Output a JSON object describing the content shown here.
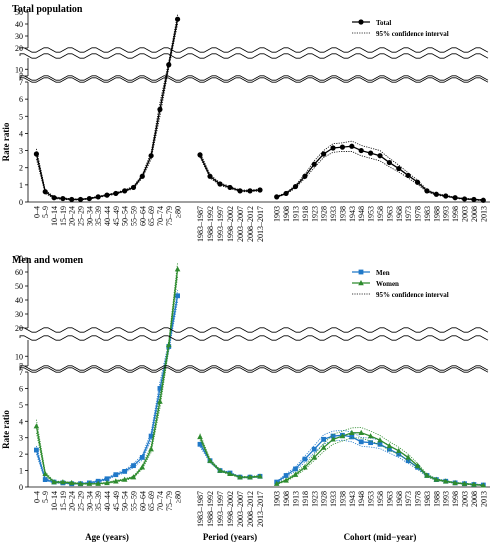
{
  "chart_data": [
    {
      "type": "line",
      "title": "Total population",
      "ylabel": "Rate ratio",
      "ci_label": "95% confidence interval",
      "ci_style": "dotted",
      "y_segments": [
        {
          "ylim": [
            0,
            7
          ],
          "yticks": [
            0,
            1,
            2,
            3,
            4,
            5,
            6,
            7
          ]
        },
        {
          "ylim": [
            7,
            15
          ],
          "yticks": [
            7,
            10
          ]
        },
        {
          "ylim": [
            20,
            50
          ],
          "yticks": [
            20,
            30,
            40,
            50
          ]
        }
      ],
      "panels": [
        {
          "categories": [
            "0–4",
            "5–9",
            "10–14",
            "15–19",
            "20–24",
            "25–29",
            "30–34",
            "35–39",
            "40–44",
            "45–49",
            "50–54",
            "55–59",
            "60–64",
            "65–69",
            "70–74",
            "75–79",
            "≥80"
          ],
          "series": [
            {
              "name": "Total",
              "color": "#000000",
              "marker": "circle",
              "values": [
                2.8,
                0.6,
                0.25,
                0.2,
                0.15,
                0.15,
                0.2,
                0.3,
                0.4,
                0.5,
                0.65,
                0.85,
                1.5,
                2.7,
                5.4,
                12,
                44
              ],
              "lower": [
                2.5,
                0.5,
                0.2,
                0.15,
                0.12,
                0.12,
                0.17,
                0.26,
                0.36,
                0.45,
                0.6,
                0.78,
                1.4,
                2.5,
                5.0,
                10.5,
                40
              ],
              "upper": [
                3.1,
                0.7,
                0.3,
                0.25,
                0.18,
                0.18,
                0.23,
                0.34,
                0.44,
                0.55,
                0.7,
                0.92,
                1.6,
                2.9,
                5.8,
                13.5,
                48
              ]
            }
          ]
        },
        {
          "categories": [
            "1983–1987",
            "1988–1992",
            "1993–1997",
            "1998–2002",
            "2003–2007",
            "2008–2012",
            "2013–2017"
          ],
          "series": [
            {
              "color": "#000000",
              "marker": "circle",
              "values": [
                2.75,
                1.5,
                1.05,
                0.85,
                0.65,
                0.65,
                0.7
              ],
              "lower": [
                2.6,
                1.4,
                0.98,
                0.79,
                0.6,
                0.6,
                0.64
              ],
              "upper": [
                2.9,
                1.6,
                1.12,
                0.91,
                0.7,
                0.7,
                0.76
              ]
            }
          ]
        },
        {
          "categories": [
            "1903",
            "1908",
            "1913",
            "1918",
            "1923",
            "1928",
            "1933",
            "1938",
            "1943",
            "1948",
            "1953",
            "1958",
            "1963",
            "1968",
            "1973",
            "1978",
            "1983",
            "1988",
            "1993",
            "1998",
            "2003",
            "2008",
            "2013"
          ],
          "series": [
            {
              "color": "#000000",
              "marker": "circle",
              "values": [
                0.3,
                0.5,
                0.9,
                1.5,
                2.2,
                2.8,
                3.15,
                3.2,
                3.25,
                3.0,
                2.85,
                2.7,
                2.3,
                1.95,
                1.55,
                1.15,
                0.65,
                0.45,
                0.35,
                0.25,
                0.18,
                0.15,
                0.1
              ],
              "lower": [
                0.27,
                0.45,
                0.82,
                1.38,
                2.0,
                2.6,
                2.9,
                2.95,
                2.95,
                2.7,
                2.55,
                2.4,
                2.05,
                1.75,
                1.4,
                1.03,
                0.58,
                0.4,
                0.31,
                0.22,
                0.15,
                0.12,
                0.07
              ],
              "upper": [
                0.33,
                0.55,
                0.98,
                1.62,
                2.4,
                3.0,
                3.4,
                3.45,
                3.55,
                3.3,
                3.15,
                3.0,
                2.55,
                2.15,
                1.7,
                1.27,
                0.72,
                0.5,
                0.39,
                0.28,
                0.21,
                0.18,
                0.13
              ]
            }
          ]
        }
      ]
    },
    {
      "type": "line",
      "title": "Men and women",
      "ylabel": "Rate ratio",
      "ci_label": "95% confidence interval",
      "ci_style": "dotted",
      "y_segments": [
        {
          "ylim": [
            0,
            7
          ],
          "yticks": [
            0,
            1,
            2,
            3,
            4,
            5,
            6,
            7
          ]
        },
        {
          "ylim": [
            7,
            15
          ],
          "yticks": [
            7,
            10
          ]
        },
        {
          "ylim": [
            20,
            70
          ],
          "yticks": [
            20,
            30,
            40,
            50,
            60,
            70
          ]
        }
      ],
      "panels": [
        {
          "xlabel": "Age (years)",
          "categories": [
            "0–4",
            "5–9",
            "10–14",
            "15–19",
            "20–24",
            "25–29",
            "30–34",
            "35–39",
            "40–44",
            "45–49",
            "50–54",
            "55–59",
            "60–64",
            "65–69",
            "70–74",
            "75–79",
            "≥80"
          ],
          "series": [
            {
              "name": "Men",
              "color": "#1f78c8",
              "marker": "square",
              "values": [
                2.25,
                0.45,
                0.3,
                0.25,
                0.2,
                0.2,
                0.25,
                0.35,
                0.5,
                0.75,
                0.95,
                1.3,
                1.8,
                3.1,
                6.0,
                13,
                43
              ],
              "lower": [
                2.0,
                0.38,
                0.25,
                0.21,
                0.17,
                0.17,
                0.21,
                0.3,
                0.44,
                0.68,
                0.86,
                1.18,
                1.65,
                2.85,
                5.6,
                11.5,
                39
              ],
              "upper": [
                2.5,
                0.52,
                0.35,
                0.29,
                0.23,
                0.23,
                0.29,
                0.4,
                0.56,
                0.82,
                1.04,
                1.42,
                1.95,
                3.35,
                6.4,
                14.5,
                47
              ]
            },
            {
              "name": "Women",
              "color": "#2e8b2e",
              "marker": "triangle",
              "values": [
                3.7,
                0.8,
                0.3,
                0.3,
                0.25,
                0.2,
                0.2,
                0.2,
                0.25,
                0.35,
                0.45,
                0.6,
                1.2,
                2.3,
                5.2,
                13.5,
                62
              ],
              "lower": [
                3.3,
                0.68,
                0.25,
                0.25,
                0.21,
                0.17,
                0.17,
                0.17,
                0.21,
                0.3,
                0.4,
                0.54,
                1.1,
                2.1,
                4.8,
                12,
                57
              ],
              "upper": [
                4.1,
                0.92,
                0.35,
                0.35,
                0.29,
                0.23,
                0.23,
                0.23,
                0.29,
                0.4,
                0.5,
                0.66,
                1.3,
                2.5,
                5.6,
                14.8,
                67
              ]
            }
          ]
        },
        {
          "xlabel": "Period (years)",
          "categories": [
            "1983–1987",
            "1988–1992",
            "1993–1997",
            "1998–2002",
            "2003–2007",
            "2008–2012",
            "2013–2017"
          ],
          "series": [
            {
              "color": "#1f78c8",
              "marker": "square",
              "values": [
                2.6,
                1.6,
                1.0,
                0.85,
                0.6,
                0.6,
                0.65
              ],
              "lower": [
                2.45,
                1.5,
                0.94,
                0.8,
                0.56,
                0.56,
                0.6
              ],
              "upper": [
                2.75,
                1.7,
                1.06,
                0.9,
                0.64,
                0.64,
                0.7
              ]
            },
            {
              "color": "#2e8b2e",
              "marker": "triangle",
              "values": [
                3.05,
                1.6,
                1.0,
                0.8,
                0.6,
                0.6,
                0.65
              ],
              "lower": [
                2.85,
                1.5,
                0.94,
                0.75,
                0.56,
                0.56,
                0.6
              ],
              "upper": [
                3.25,
                1.7,
                1.06,
                0.85,
                0.64,
                0.64,
                0.7
              ]
            }
          ]
        },
        {
          "xlabel": "Cohort (mid−year)",
          "categories": [
            "1903",
            "1908",
            "1913",
            "1918",
            "1923",
            "1928",
            "1933",
            "1938",
            "1943",
            "1948",
            "1953",
            "1958",
            "1963",
            "1968",
            "1973",
            "1978",
            "1983",
            "1988",
            "1993",
            "1998",
            "2003",
            "2008",
            "2013"
          ],
          "series": [
            {
              "color": "#1f78c8",
              "marker": "square",
              "values": [
                0.3,
                0.7,
                1.1,
                1.7,
                2.3,
                2.9,
                3.1,
                3.15,
                3.05,
                2.75,
                2.7,
                2.6,
                2.3,
                2.0,
                1.6,
                1.2,
                0.7,
                0.45,
                0.35,
                0.25,
                0.2,
                0.15,
                0.12
              ],
              "lower": [
                0.25,
                0.6,
                0.98,
                1.52,
                2.08,
                2.62,
                2.8,
                2.85,
                2.75,
                2.48,
                2.43,
                2.34,
                2.07,
                1.8,
                1.44,
                1.08,
                0.62,
                0.4,
                0.31,
                0.22,
                0.17,
                0.12,
                0.09
              ],
              "upper": [
                0.35,
                0.8,
                1.22,
                1.88,
                2.52,
                3.18,
                3.4,
                3.45,
                3.35,
                3.02,
                2.97,
                2.86,
                2.53,
                2.2,
                1.76,
                1.32,
                0.78,
                0.5,
                0.39,
                0.28,
                0.23,
                0.18,
                0.15
              ]
            },
            {
              "color": "#2e8b2e",
              "marker": "triangle",
              "values": [
                0.2,
                0.4,
                0.75,
                1.2,
                1.8,
                2.4,
                2.9,
                3.1,
                3.3,
                3.3,
                3.1,
                2.85,
                2.5,
                2.2,
                1.8,
                1.3,
                0.7,
                0.45,
                0.35,
                0.25,
                0.2,
                0.15,
                0.1
              ],
              "lower": [
                0.16,
                0.34,
                0.66,
                1.07,
                1.62,
                2.16,
                2.6,
                2.8,
                3.0,
                2.98,
                2.8,
                2.56,
                2.24,
                1.98,
                1.6,
                1.16,
                0.62,
                0.4,
                0.31,
                0.22,
                0.17,
                0.12,
                0.08
              ],
              "upper": [
                0.24,
                0.46,
                0.84,
                1.33,
                1.98,
                2.64,
                3.2,
                3.4,
                3.6,
                3.62,
                3.4,
                3.14,
                2.76,
                2.42,
                2.0,
                1.44,
                0.78,
                0.5,
                0.39,
                0.28,
                0.23,
                0.18,
                0.12
              ]
            }
          ]
        }
      ]
    }
  ]
}
